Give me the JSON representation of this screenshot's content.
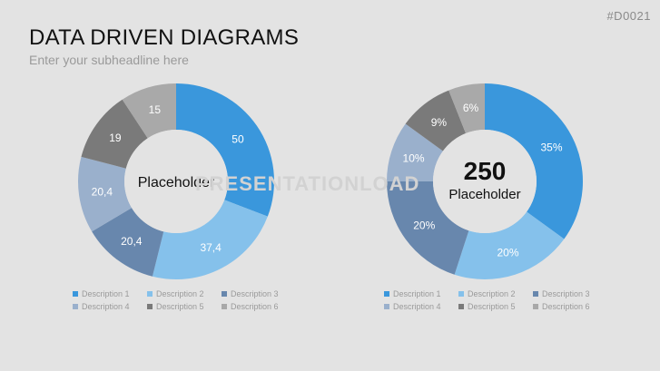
{
  "slide_id": "#D0021",
  "title": "DATA DRIVEN DIAGRAMS",
  "subtitle": "Enter your subheadline here",
  "watermark": "PRESENTATIONLOAD",
  "colors": [
    "#3a97dc",
    "#85c1eb",
    "#6887ad",
    "#9ab0cc",
    "#7a7a7a",
    "#a9a9a9"
  ],
  "chart_data": [
    {
      "type": "pie",
      "hole": true,
      "center_label": "Placeholder",
      "categories": [
        "Description 1",
        "Description 2",
        "Description 3",
        "Description 4",
        "Description 5",
        "Description 6"
      ],
      "values": [
        50,
        37.4,
        20.4,
        20.4,
        19,
        15
      ],
      "labels": [
        "50",
        "37,4",
        "20,4",
        "20,4",
        "19",
        "15"
      ],
      "legend": "bottom"
    },
    {
      "type": "pie",
      "hole": true,
      "center_value": "250",
      "center_label": "Placeholder",
      "categories": [
        "Description 1",
        "Description 2",
        "Description 3",
        "Description 4",
        "Description 5",
        "Description 6"
      ],
      "values": [
        35,
        20,
        20,
        10,
        9,
        6
      ],
      "labels": [
        "35%",
        "20%",
        "20%",
        "10%",
        "9%",
        "6%"
      ],
      "legend": "bottom"
    }
  ]
}
